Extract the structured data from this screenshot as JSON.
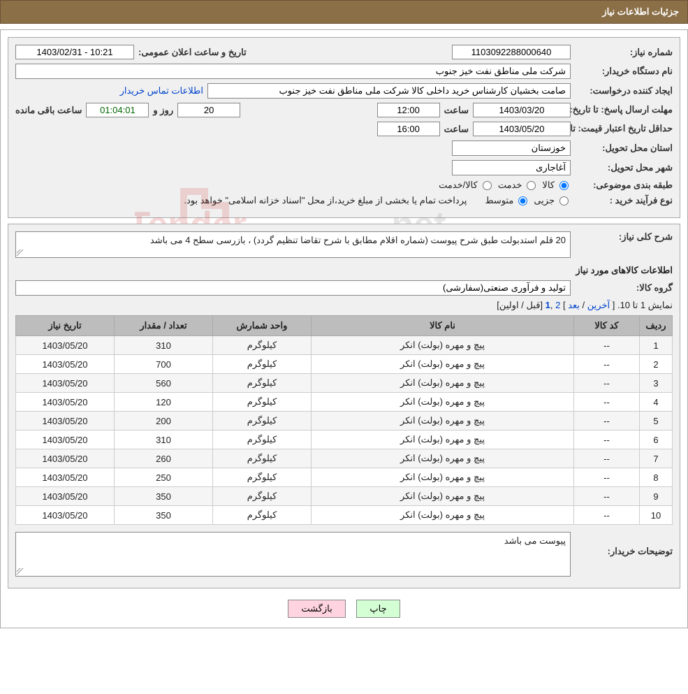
{
  "header": {
    "title": "جزئیات اطلاعات نیاز"
  },
  "labels": {
    "need_no": "شماره نیاز:",
    "announce_dt": "تاریخ و ساعت اعلان عمومی:",
    "buyer_org": "نام دستگاه خریدار:",
    "requester": "ایجاد کننده درخواست:",
    "contact_link": "اطلاعات تماس خریدار",
    "response_deadline": "مهلت ارسال پاسخ:  تا تاریخ:",
    "hour": "ساعت",
    "and": "و",
    "day": "روز و",
    "remaining": "ساعت باقی مانده",
    "price_validity": "حداقل تاریخ اعتبار قیمت: تا تاریخ:",
    "delivery_province": "استان محل تحویل:",
    "delivery_city": "شهر محل تحویل:",
    "subject_class": "طبقه بندی موضوعی:",
    "buy_type": "نوع فرآیند خرید :",
    "buy_type_note": "پرداخت تمام یا بخشی از مبلغ خرید،از محل \"اسناد خزانه اسلامی\" خواهد بود.",
    "overall_desc": "شرح کلی نیاز:",
    "goods_info_title": "اطلاعات کالاهای مورد نیاز",
    "goods_group": "گروه کالا:",
    "buyer_notes": "توضیحات خریدار:"
  },
  "fields": {
    "need_no": "1103092288000640",
    "announce_dt": "1403/02/31 - 10:21",
    "buyer_org": "شرکت ملی مناطق نفت خیز جنوب",
    "requester": "صامت  بخشیان  کارشناس خرید داخلی کالا  شرکت ملی مناطق نفت خیز جنوب",
    "resp_date": "1403/03/20",
    "resp_time": "12:00",
    "resp_days": "20",
    "resp_remain": "01:04:01",
    "price_date": "1403/05/20",
    "price_time": "16:00",
    "province": "خوزستان",
    "city": "آغاجاری",
    "overall_desc": "20 قلم استدبولت طبق شرح پیوست  (شماره اقلام مطابق با شرح تقاضا تنظیم گردد) ، بازرسی سطح 4 می باشد",
    "goods_group": "تولید و فرآوری صنعتی(سفارشی)",
    "buyer_notes": "پیوست می باشد"
  },
  "radios": {
    "class": {
      "opt1": "کالا",
      "opt2": "خدمت",
      "opt3": "کالا/خدمت",
      "selected": 0
    },
    "buy": {
      "opt1": "جزیی",
      "opt2": "متوسط",
      "selected": 1
    }
  },
  "pager": {
    "text_prefix": "نمایش 1 تا 10.",
    "last": "آخرین",
    "next": "بعد",
    "p2": "2",
    "p1": "1",
    "prev": "قبل",
    "first": "اولین"
  },
  "table": {
    "columns": [
      "ردیف",
      "کد کالا",
      "نام کالا",
      "واحد شمارش",
      "تعداد / مقدار",
      "تاریخ نیاز"
    ],
    "col_widths": [
      "5%",
      "10%",
      "40%",
      "15%",
      "15%",
      "15%"
    ],
    "rows": [
      [
        "1",
        "--",
        "پیچ و مهره (بولت) انکر",
        "کیلوگرم",
        "310",
        "1403/05/20"
      ],
      [
        "2",
        "--",
        "پیچ و مهره (بولت) انکر",
        "کیلوگرم",
        "700",
        "1403/05/20"
      ],
      [
        "3",
        "--",
        "پیچ و مهره (بولت) انکر",
        "کیلوگرم",
        "560",
        "1403/05/20"
      ],
      [
        "4",
        "--",
        "پیچ و مهره (بولت) انکر",
        "کیلوگرم",
        "120",
        "1403/05/20"
      ],
      [
        "5",
        "--",
        "پیچ و مهره (بولت) انکر",
        "کیلوگرم",
        "200",
        "1403/05/20"
      ],
      [
        "6",
        "--",
        "پیچ و مهره (بولت) انکر",
        "کیلوگرم",
        "310",
        "1403/05/20"
      ],
      [
        "7",
        "--",
        "پیچ و مهره (بولت) انکر",
        "کیلوگرم",
        "260",
        "1403/05/20"
      ],
      [
        "8",
        "--",
        "پیچ و مهره (بولت) انکر",
        "کیلوگرم",
        "250",
        "1403/05/20"
      ],
      [
        "9",
        "--",
        "پیچ و مهره (بولت) انکر",
        "کیلوگرم",
        "350",
        "1403/05/20"
      ],
      [
        "10",
        "--",
        "پیچ و مهره (بولت) انکر",
        "کیلوگرم",
        "350",
        "1403/05/20"
      ]
    ]
  },
  "buttons": {
    "print": "چاپ",
    "back": "بازگشت"
  },
  "colors": {
    "titlebar_bg": "#8b6f47",
    "section_bg": "#f0f0f0",
    "th_bg": "#bdbdbd",
    "link": "#0044cc",
    "btn_print_bg": "#d4ffd4",
    "btn_back_bg": "#ffd4e0"
  }
}
